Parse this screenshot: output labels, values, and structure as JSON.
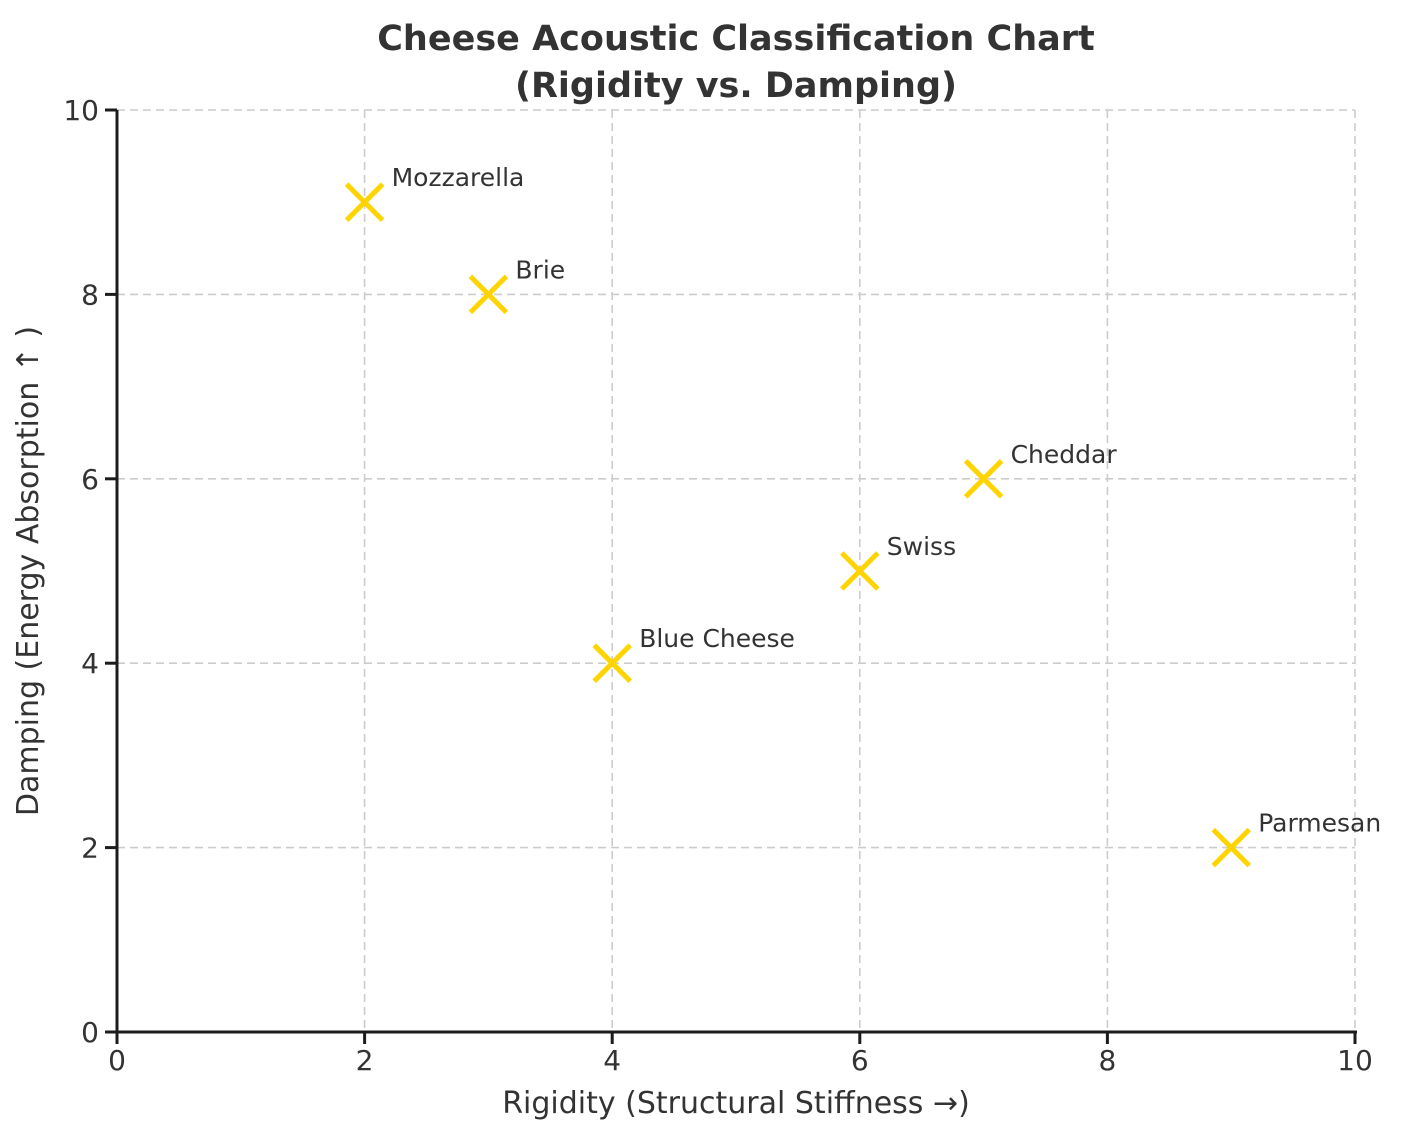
{
  "figure": {
    "background": "#ffffff"
  },
  "chart_data": {
    "type": "scatter",
    "title": "Cheese Acoustic Classification Chart\n(Rigidity vs. Damping)",
    "xlabel": "Rigidity (Structural Stiffness →)",
    "ylabel": "Damping (Energy Absorption ↑ )",
    "xlim": [
      0,
      10
    ],
    "ylim": [
      0,
      10
    ],
    "xticks": [
      "0",
      "2",
      "4",
      "6",
      "8",
      "10"
    ],
    "yticks": [
      "0",
      "2",
      "4",
      "6",
      "8",
      "10"
    ],
    "grid": true,
    "legend": false,
    "marker": "x",
    "marker_color": "#FFD400",
    "grid_color": "#cccccc",
    "axis_color": "#1c1c1c",
    "text_color": "#333333",
    "points": [
      {
        "label": "Mozzarella",
        "x": 2,
        "y": 9
      },
      {
        "label": "Brie",
        "x": 3,
        "y": 8
      },
      {
        "label": "Blue Cheese",
        "x": 4,
        "y": 4
      },
      {
        "label": "Swiss",
        "x": 6,
        "y": 5
      },
      {
        "label": "Cheddar",
        "x": 7,
        "y": 6
      },
      {
        "label": "Parmesan",
        "x": 9,
        "y": 2
      }
    ]
  }
}
